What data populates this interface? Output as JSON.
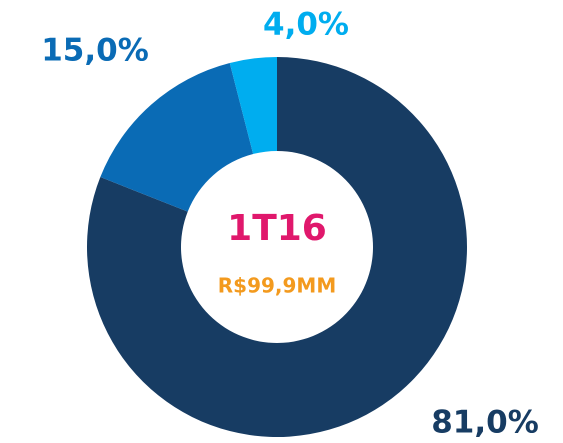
{
  "chart_data": {
    "type": "donut",
    "values": [
      81,
      15,
      4
    ],
    "value_labels": [
      "81,0%",
      "15,0%",
      "4,0%"
    ],
    "colors": [
      "#173c63",
      "#0a6bb5",
      "#00adef"
    ],
    "annotations": [
      {
        "text": "1T16",
        "color": "#e0186c"
      },
      {
        "text": "R$99,9MM",
        "color": "#f39a1e"
      }
    ]
  }
}
